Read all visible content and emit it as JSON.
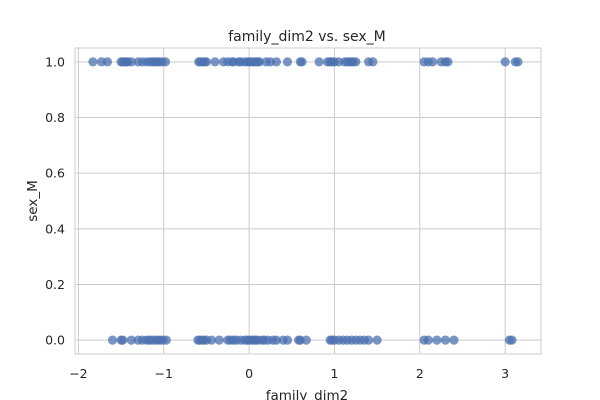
{
  "chart_data": {
    "type": "scatter",
    "title": "family_dim2 vs. sex_M",
    "xlabel": "family_dim2",
    "ylabel": "sex_M",
    "xlim": [
      -2.04,
      3.42
    ],
    "ylim": [
      -0.05,
      1.05
    ],
    "grid": true,
    "colors": {
      "points": "#4c72b0",
      "grid": "#cccccc",
      "text": "#262626"
    },
    "xticks": [
      {
        "value": -2,
        "label": "−2"
      },
      {
        "value": -1,
        "label": "−1"
      },
      {
        "value": 0,
        "label": "0"
      },
      {
        "value": 1,
        "label": "1"
      },
      {
        "value": 2,
        "label": "2"
      },
      {
        "value": 3,
        "label": "3"
      }
    ],
    "yticks": [
      {
        "value": 0,
        "label": "0.0"
      },
      {
        "value": 0.2,
        "label": "0.2"
      },
      {
        "value": 0.4,
        "label": "0.4"
      },
      {
        "value": 0.6,
        "label": "0.6"
      },
      {
        "value": 0.8,
        "label": "0.8"
      },
      {
        "value": 1.0,
        "label": "1.0"
      }
    ],
    "series": [
      {
        "y": 1,
        "x": [
          -1.83,
          -1.73,
          -1.66,
          -1.5,
          -1.48,
          -1.46,
          -1.44,
          -1.42,
          -1.38,
          -1.3,
          -1.25,
          -1.2,
          -1.16,
          -1.13,
          -1.1,
          -1.08,
          -1.05,
          -1.02,
          -0.98,
          -0.59,
          -0.57,
          -0.54,
          -0.52,
          -0.5,
          -0.4,
          -0.3,
          -0.25,
          -0.2,
          -0.18,
          -0.12,
          -0.1,
          -0.05,
          -0.02,
          0.0,
          0.02,
          0.05,
          0.08,
          0.1,
          0.12,
          0.2,
          0.25,
          0.32,
          0.45,
          0.6,
          0.62,
          0.82,
          0.92,
          0.95,
          0.97,
          1.0,
          1.05,
          1.12,
          1.15,
          1.18,
          1.2,
          1.22,
          1.25,
          1.4,
          1.45,
          2.05,
          2.1,
          2.15,
          2.25,
          2.3,
          2.33,
          3.0,
          3.12,
          3.15
        ]
      },
      {
        "y": 0,
        "x": [
          -1.6,
          -1.5,
          -1.48,
          -1.38,
          -1.3,
          -1.25,
          -1.2,
          -1.17,
          -1.14,
          -1.1,
          -1.07,
          -1.04,
          -1.01,
          -0.97,
          -0.6,
          -0.58,
          -0.55,
          -0.53,
          -0.5,
          -0.44,
          -0.35,
          -0.25,
          -0.22,
          -0.18,
          -0.15,
          -0.1,
          -0.05,
          -0.02,
          0.0,
          0.03,
          0.06,
          0.08,
          0.1,
          0.15,
          0.18,
          0.22,
          0.28,
          0.32,
          0.4,
          0.45,
          0.58,
          0.6,
          0.67,
          0.95,
          0.97,
          1.0,
          1.05,
          1.1,
          1.15,
          1.2,
          1.25,
          1.3,
          1.35,
          1.4,
          1.5,
          2.05,
          2.1,
          2.2,
          2.3,
          2.4,
          3.05,
          3.08
        ]
      }
    ]
  }
}
